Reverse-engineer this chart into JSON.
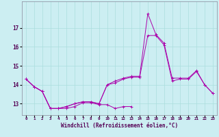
{
  "xlabel": "Windchill (Refroidissement éolien,°C)",
  "bg_color": "#cceef2",
  "grid_color": "#aadddd",
  "line_color": "#aa00aa",
  "x_values": [
    0,
    1,
    2,
    3,
    4,
    5,
    6,
    7,
    8,
    9,
    10,
    11,
    12,
    13,
    14,
    15,
    16,
    17,
    18,
    19,
    20,
    21,
    22,
    23
  ],
  "line1": [
    14.3,
    13.9,
    13.65,
    12.75,
    12.75,
    12.75,
    12.85,
    13.05,
    13.05,
    12.95,
    12.95,
    12.75,
    12.85,
    12.85,
    null,
    null,
    null,
    null,
    null,
    null,
    null,
    null,
    null,
    null
  ],
  "line2": [
    14.3,
    13.9,
    13.65,
    12.75,
    12.75,
    12.85,
    13.0,
    13.1,
    13.1,
    13.0,
    14.0,
    14.1,
    14.3,
    14.4,
    14.4,
    16.6,
    16.6,
    16.1,
    14.2,
    14.3,
    14.3,
    14.7,
    14.0,
    13.55
  ],
  "line3": [
    14.3,
    13.9,
    13.65,
    12.75,
    12.75,
    12.85,
    13.0,
    13.1,
    13.1,
    13.0,
    14.0,
    14.2,
    14.35,
    14.45,
    14.45,
    17.75,
    16.65,
    16.2,
    14.35,
    14.35,
    14.35,
    14.75,
    14.0,
    13.55
  ],
  "ylim": [
    12.4,
    18.4
  ],
  "yticks": [
    13,
    14,
    15,
    16,
    17
  ],
  "xlim": [
    -0.5,
    23.5
  ]
}
